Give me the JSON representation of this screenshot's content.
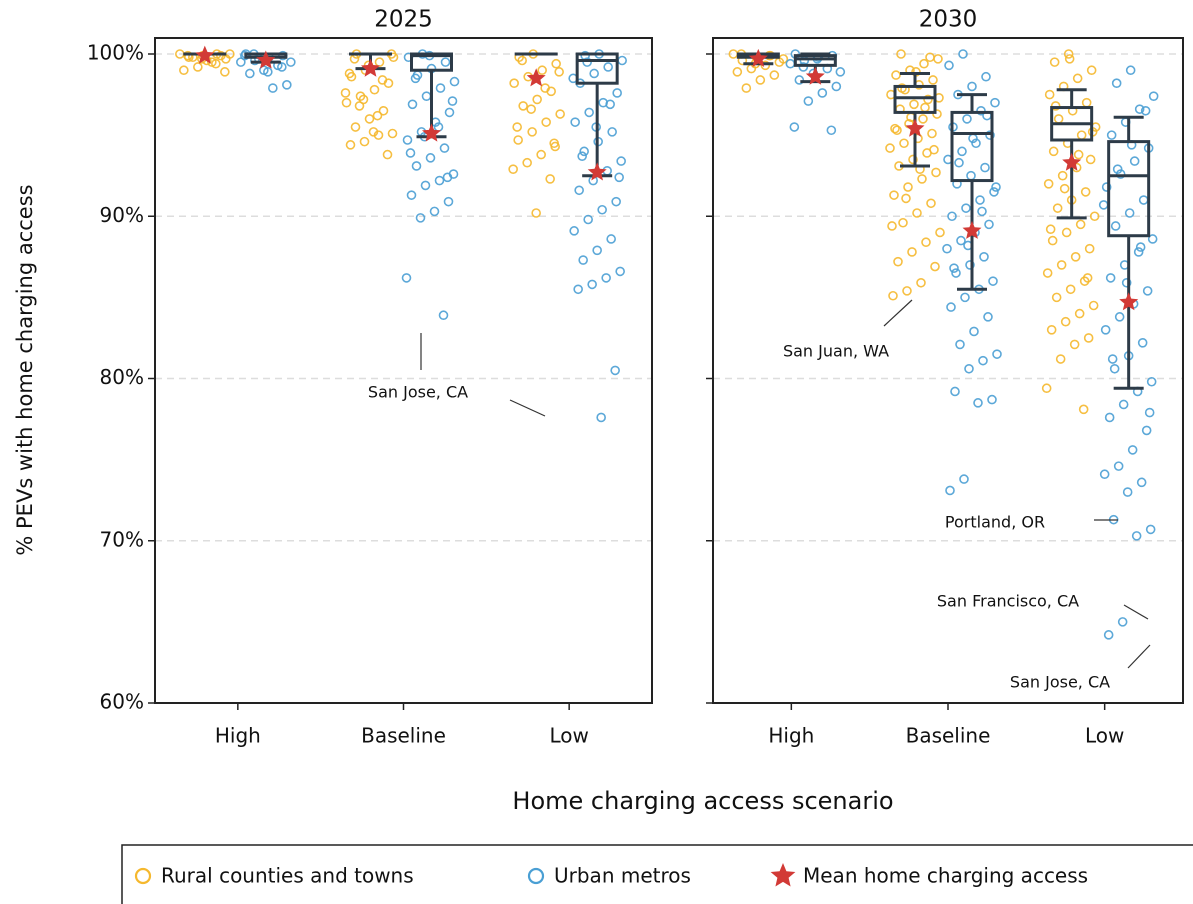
{
  "chart_data": {
    "type": "box",
    "ylabel": "% PEVs with home charging access",
    "xlabel": "Home charging access scenario",
    "ylim": [
      60,
      100
    ],
    "yticks": [
      {
        "value": 60,
        "label": "60%"
      },
      {
        "value": 70,
        "label": "70%"
      },
      {
        "value": 80,
        "label": "80%"
      },
      {
        "value": 90,
        "label": "90%"
      },
      {
        "value": 100,
        "label": "100%"
      }
    ],
    "grid": true,
    "categories": [
      "High",
      "Baseline",
      "Low"
    ],
    "mean_name": "Mean home charging access",
    "mean_color": "#d23a36",
    "box_color": "#2d3b48",
    "panels": [
      {
        "title": "2025",
        "annotations": [
          "San Jose, CA"
        ]
      },
      {
        "title": "2030",
        "annotations": [
          "San Juan, WA",
          "Portland, OR",
          "San Francisco, CA",
          "San Jose, CA"
        ]
      }
    ],
    "series": [
      {
        "name": "Rural counties and towns",
        "color": "#f5b82e",
        "boxes": [
          [
            {
              "low": 100,
              "q1": 100,
              "median": 100,
              "q3": 100,
              "high": 100
            },
            {
              "low": 99.1,
              "q1": 100,
              "median": 100,
              "q3": 100,
              "high": 100
            },
            {
              "low": 100,
              "q1": 100,
              "median": 100,
              "q3": 100,
              "high": 100
            }
          ],
          [
            {
              "low": 99.4,
              "q1": 99.8,
              "median": 99.9,
              "q3": 100,
              "high": 100
            },
            {
              "low": 93.1,
              "q1": 96.4,
              "median": 97.3,
              "q3": 98.0,
              "high": 98.8
            },
            {
              "low": 89.9,
              "q1": 94.7,
              "median": 95.7,
              "q3": 96.7,
              "high": 97.8
            }
          ]
        ],
        "means": [
          [
            99.9,
            99.1,
            98.5
          ],
          [
            99.7,
            95.4,
            93.3
          ]
        ],
        "points": [
          [
            [
              100,
              100,
              99.9,
              99.8,
              99.7,
              99.5,
              99.2,
              99,
              99.9,
              99.6,
              99.8,
              100,
              99.4,
              99.7,
              99.9,
              98.9
            ],
            [
              100,
              99.8,
              99.5,
              99,
              98.6,
              98.2,
              97.8,
              97.4,
              97,
              96.5,
              96,
              95.5,
              95.1,
              95,
              94.6,
              94.4,
              93.8,
              95.2,
              96.8,
              97.6,
              98.4,
              99.3,
              99.7,
              100,
              96.2,
              97.2,
              98.8
            ],
            [
              100,
              99.8,
              99.4,
              99,
              98.6,
              98.2,
              97.7,
              97.2,
              96.8,
              96.3,
              95.8,
              95.2,
              94.7,
              94.3,
              93.8,
              93.3,
              92.9,
              92.3,
              90.2,
              99.6,
              98.9,
              97.9,
              96.6,
              95.5,
              94.5
            ]
          ],
          [
            [
              100,
              99.9,
              99.8,
              99.6,
              99.5,
              99.3,
              99.1,
              98.9,
              98.7,
              98.4,
              97.9,
              99.7,
              99.9,
              99.4,
              100
            ],
            [
              100,
              99.7,
              99.4,
              99,
              98.7,
              98.4,
              98.1,
              97.8,
              97.5,
              97.2,
              96.9,
              96.6,
              96.3,
              96,
              95.7,
              95.4,
              95.1,
              94.8,
              94.5,
              94.2,
              93.9,
              93.5,
              93.1,
              92.7,
              92.3,
              91.8,
              91.3,
              90.8,
              90.2,
              89.6,
              89,
              88.4,
              87.8,
              87.2,
              86.9,
              85.9,
              85.4,
              85.1,
              99.8,
              98.9,
              97.9,
              97.3,
              96.7,
              96.1,
              95.3,
              94.1,
              92.9,
              91.1,
              89.4
            ],
            [
              100,
              99.5,
              99,
              98.5,
              98,
              97.5,
              97,
              96.5,
              96,
              95.5,
              95,
              94.5,
              94,
              93.5,
              93,
              92.5,
              92,
              91.5,
              91,
              90.5,
              90,
              89.5,
              89,
              88.5,
              88,
              87.5,
              87,
              86.5,
              86,
              85.5,
              85,
              84.5,
              84,
              83.5,
              83,
              82.5,
              82.1,
              81.2,
              79.4,
              78.1,
              99.7,
              96.8,
              95.2,
              93.8,
              91.7,
              89.2,
              86.2
            ]
          ]
        ]
      },
      {
        "name": "Urban metros",
        "color": "#4a9fd4",
        "boxes": [
          [
            {
              "low": 99.5,
              "q1": 99.8,
              "median": 100,
              "q3": 100,
              "high": 100
            },
            {
              "low": 94.9,
              "q1": 99.0,
              "median": 99.9,
              "q3": 100,
              "high": 100
            },
            {
              "low": 92.5,
              "q1": 98.2,
              "median": 99.6,
              "q3": 100,
              "high": 100
            }
          ],
          [
            {
              "low": 98.3,
              "q1": 99.3,
              "median": 99.7,
              "q3": 99.9,
              "high": 100
            },
            {
              "low": 85.5,
              "q1": 92.2,
              "median": 95.1,
              "q3": 96.4,
              "high": 97.5
            },
            {
              "low": 79.4,
              "q1": 88.8,
              "median": 92.5,
              "q3": 94.6,
              "high": 96.1
            }
          ]
        ],
        "means": [
          [
            99.6,
            95.1,
            92.7
          ],
          [
            98.6,
            89.1,
            84.7
          ]
        ],
        "points": [
          [
            [
              100,
              99.9,
              99.8,
              99.6,
              99.5,
              99.3,
              99.0,
              98.8,
              98.1,
              97.9,
              99.7,
              99.9,
              99.2,
              98.9,
              100,
              99.5
            ],
            [
              100,
              99.8,
              99.5,
              99.1,
              98.7,
              98.3,
              97.9,
              97.4,
              96.9,
              96.4,
              95.8,
              95.2,
              94.7,
              94.2,
              93.6,
              93.1,
              92.6,
              92.2,
              91.9,
              91.3,
              90.9,
              90.3,
              89.9,
              86.2,
              83.9,
              99.9,
              98.5,
              97.1,
              95.5,
              94.9,
              93.9,
              92.4
            ],
            [
              100,
              99.9,
              99.6,
              99.2,
              98.8,
              98.2,
              97.6,
              97,
              96.4,
              95.8,
              95.2,
              94.6,
              94,
              93.4,
              92.8,
              92.2,
              91.6,
              90.9,
              90.4,
              89.8,
              89.1,
              88.6,
              87.9,
              87.3,
              86.6,
              86.2,
              85.8,
              85.5,
              80.5,
              77.6,
              99.5,
              98.5,
              96.9,
              95.5,
              93.7,
              92.4
            ]
          ],
          [
            [
              100,
              99.9,
              99.8,
              99.6,
              99.4,
              99.1,
              98.8,
              98.4,
              98,
              97.6,
              97.1,
              95.5,
              95.3,
              99.7,
              99.2,
              98.9
            ],
            [
              100,
              99.3,
              98.6,
              98,
              97.5,
              97,
              96.5,
              96,
              95.5,
              95,
              94.5,
              94,
              93.5,
              93,
              92.5,
              92,
              91.5,
              91,
              90.5,
              90,
              89.5,
              89,
              88.5,
              88,
              87.5,
              87,
              86.5,
              86,
              85.5,
              85,
              84.4,
              83.8,
              82.9,
              82.1,
              81.5,
              81.1,
              80.6,
              79.2,
              78.7,
              78.5,
              73.8,
              73.1,
              96.2,
              94.8,
              93.3,
              91.8,
              90.3,
              88.2,
              86.8
            ],
            [
              99,
              98.2,
              97.4,
              96.6,
              95.8,
              95,
              94.2,
              93.4,
              92.6,
              91.8,
              91,
              90.2,
              89.4,
              88.6,
              87.8,
              87,
              86.2,
              85.4,
              84.6,
              83.8,
              83,
              82.2,
              81.4,
              80.6,
              79.8,
              79.2,
              78.4,
              77.6,
              76.8,
              75.6,
              74.6,
              74.1,
              73.6,
              73,
              71.3,
              70.7,
              70.3,
              65,
              64.2,
              96.5,
              94.4,
              92.9,
              90.7,
              88.1,
              85.9,
              81.2,
              77.9
            ]
          ]
        ]
      }
    ]
  }
}
